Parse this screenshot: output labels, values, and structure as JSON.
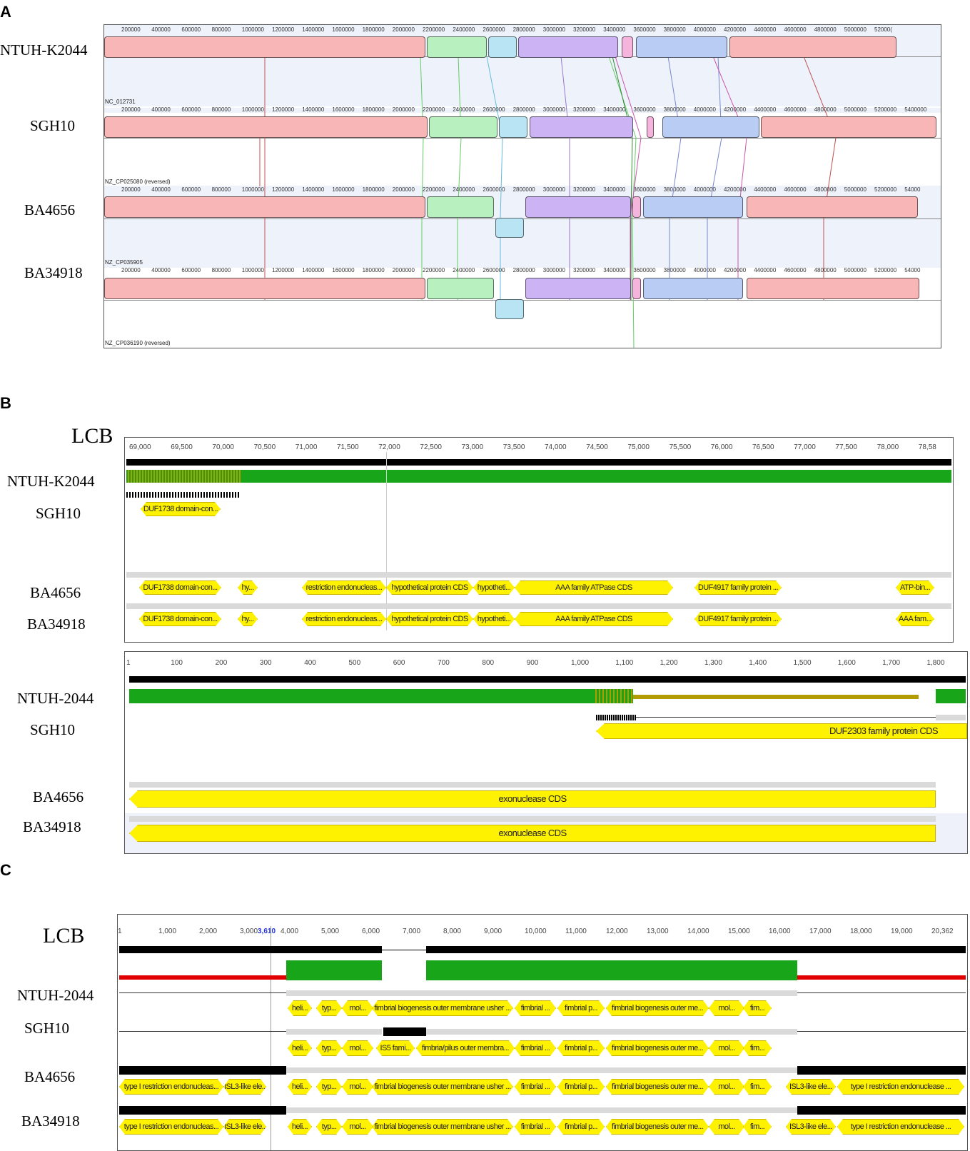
{
  "panels": {
    "a": "A",
    "b": "B",
    "c": "C"
  },
  "panel_a": {
    "genomes": [
      {
        "label": "NTUH-K2044",
        "accession": "NC_012731"
      },
      {
        "label": "SGH10",
        "accession": "NZ_CP025080 (reversed)"
      },
      {
        "label": "BA4656",
        "accession": "NZ_CP035905"
      },
      {
        "label": "BA34918",
        "accession": "NZ_CP036190 (reversed)"
      }
    ],
    "ticks_row1": [
      "200000",
      "400000",
      "600000",
      "800000",
      "1000000",
      "1200000",
      "1400000",
      "1600000",
      "1800000",
      "2000000",
      "2200000",
      "2400000",
      "2600000",
      "2800000",
      "3000000",
      "3200000",
      "3400000",
      "3600000",
      "3800000",
      "4000000",
      "4200000",
      "4400000",
      "4600000",
      "4800000",
      "5000000",
      "52000("
    ],
    "ticks_rows": [
      "200000",
      "400000",
      "600000",
      "800000",
      "1000000",
      "1200000",
      "1400000",
      "1600000",
      "1800000",
      "2000000",
      "2200000",
      "2400000",
      "2600000",
      "2800000",
      "3000000",
      "3200000",
      "3400000",
      "3600000",
      "3800000",
      "4000000",
      "4200000",
      "4400000",
      "4600000",
      "4800000",
      "5000000",
      "5200000",
      "5400000"
    ],
    "ticks_row3_last": "54000",
    "colors": {
      "red": "#f8b6b6",
      "green": "#b8f0c0",
      "cyan": "#b8e4f4",
      "purple": "#ccb4f4",
      "magenta": "#f4b4dc",
      "blue": "#b8ccf4"
    }
  },
  "panel_b": {
    "lcb_label": "LCB",
    "top": {
      "ticks": [
        "69,000",
        "69,500",
        "70,000",
        "70,500",
        "71,000",
        "71,500",
        "72,000",
        "72,500",
        "73,000",
        "73,500",
        "74,000",
        "74,500",
        "75,000",
        "75,500",
        "76,000",
        "76,500",
        "77,000",
        "77,500",
        "78,000",
        "78,58"
      ],
      "labels": [
        "NTUH-K2044",
        "SGH10",
        "BA4656",
        "BA34918"
      ],
      "sgh10_genes": [
        "DUF1738 domain-con..."
      ],
      "ba4656_genes": [
        "DUF1738 domain-con...",
        "hy...",
        "restriction endonucleas...",
        "hypothetical protein CDS",
        "hypotheti...",
        "AAA family ATPase CDS",
        "DUF4917 family protein ...",
        "ATP-bin..."
      ],
      "ba34918_genes": [
        "DUF1738 domain-con...",
        "hy...",
        "restriction endonucleas...",
        "hypothetical protein CDS",
        "hypotheti...",
        "AAA family ATPase CDS",
        "DUF4917 family protein ...",
        "AAA fam..."
      ]
    },
    "bottom": {
      "ticks": [
        "1",
        "100",
        "200",
        "300",
        "400",
        "500",
        "600",
        "700",
        "800",
        "900",
        "1,000",
        "1,100",
        "1,200",
        "1,300",
        "1,400",
        "1,500",
        "1,600",
        "1,700",
        "1,800"
      ],
      "labels": [
        "NTUH-2044",
        "SGH10",
        "BA4656",
        "BA34918"
      ],
      "sgh10_gene": "DUF2303 family protein CDS",
      "ba_gene": "exonuclease CDS"
    }
  },
  "panel_c": {
    "lcb_label": "LCB",
    "ticks": [
      "1",
      "1,000",
      "2,000",
      "3,000",
      "4,000",
      "5,000",
      "6,000",
      "7,000",
      "8,000",
      "9,000",
      "10,000",
      "11,000",
      "12,000",
      "13,000",
      "14,000",
      "15,000",
      "16,000",
      "17,000",
      "18,000",
      "19,000",
      "20,362"
    ],
    "cursor_label": "3,610",
    "labels": [
      "NTUH-2044",
      "SGH10",
      "BA4656",
      "BA34918"
    ],
    "row1_genes": [
      "heli...",
      "typ...",
      "mol...",
      "fimbrial biogenesis outer membrane usher ...",
      "fimbrial ...",
      "fimbrial p...",
      "fimbrial biogenesis outer me...",
      "mol...",
      "fim..."
    ],
    "row2_genes": [
      "heli...",
      "typ...",
      "mol...",
      "IS5 fami...",
      "fimbria/pilus outer membra...",
      "fimbrial ...",
      "fimbrial p...",
      "fimbrial biogenesis outer me...",
      "mol...",
      "fim..."
    ],
    "row3_genes": [
      "type I restriction endonucleas...",
      "ISL3-like ele...",
      "heli...",
      "typ...",
      "mol...",
      "fimbrial biogenesis outer membrane usher ...",
      "fimbrial ...",
      "fimbrial p...",
      "fimbrial biogenesis outer me...",
      "mol...",
      "fim...",
      "ISL3-like ele...",
      "type I restriction endonuclease ..."
    ],
    "row4_genes": [
      "type I restriction endonucleas...",
      "ISL3-like ele...",
      "heli...",
      "typ...",
      "mol...",
      "fimbrial biogenesis outer membrane usher ...",
      "fimbrial ...",
      "fimbrial p...",
      "fimbrial biogenesis outer me...",
      "mol...",
      "fim...",
      "ISL3-like ele...",
      "type I restriction endonuclease ..."
    ]
  }
}
